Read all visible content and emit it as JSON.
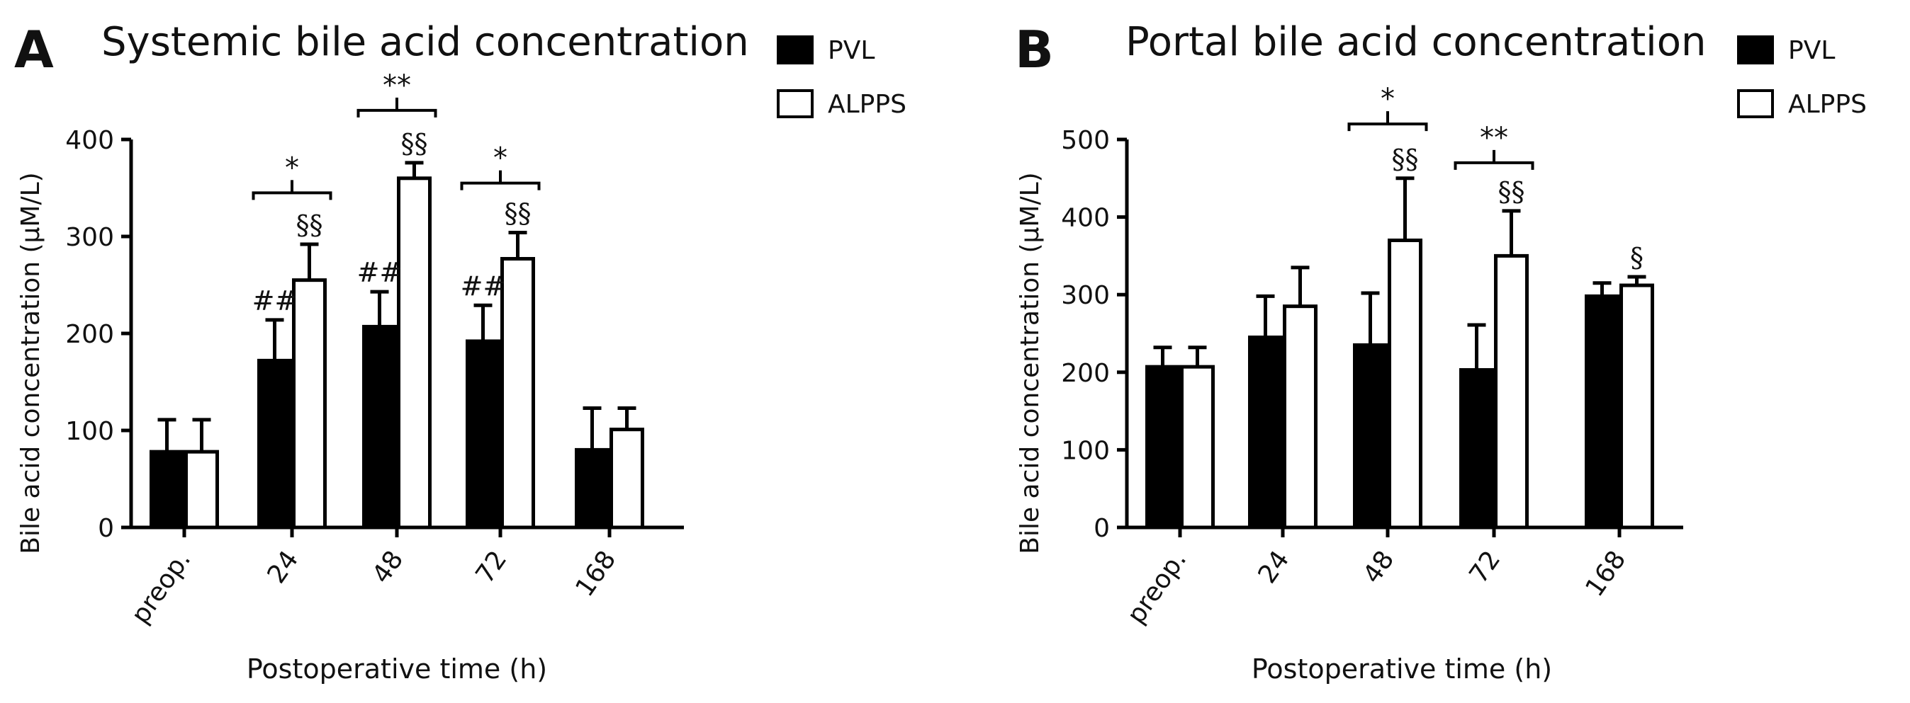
{
  "chart_data": [
    {
      "panel": "A",
      "type": "bar",
      "title": "Systemic bile acid concentration",
      "xlabel": "Postoperative time (h)",
      "ylabel": "Bile acid concentration (μM/L)",
      "ylim": [
        0,
        400
      ],
      "yticks": [
        0,
        100,
        200,
        300,
        400
      ],
      "categories": [
        "preop.",
        "24",
        "48",
        "72",
        "168"
      ],
      "series": [
        {
          "name": "PVL",
          "color": "#000000",
          "values": [
            78,
            172,
            207,
            192,
            80
          ],
          "errors": [
            33,
            42,
            36,
            37,
            43
          ]
        },
        {
          "name": "ALPPS",
          "color": "#ffffff",
          "values": [
            78,
            255,
            360,
            277,
            101
          ],
          "errors": [
            33,
            37,
            16,
            27,
            22
          ]
        }
      ],
      "annotations": [
        {
          "category": "24",
          "series": "PVL",
          "text": "##"
        },
        {
          "category": "48",
          "series": "PVL",
          "text": "##"
        },
        {
          "category": "72",
          "series": "PVL",
          "text": "##"
        },
        {
          "category": "24",
          "series": "ALPPS",
          "text": "§§"
        },
        {
          "category": "48",
          "series": "ALPPS",
          "text": "§§"
        },
        {
          "category": "72",
          "series": "ALPPS",
          "text": "§§"
        }
      ],
      "brackets": [
        {
          "category": "24",
          "text": "*",
          "level": 345
        },
        {
          "category": "48",
          "text": "**",
          "level": 430
        },
        {
          "category": "72",
          "text": "*",
          "level": 355
        }
      ],
      "legend": "top-right"
    },
    {
      "panel": "B",
      "type": "bar",
      "title": "Portal bile acid concentration",
      "xlabel": "Postoperative time (h)",
      "ylabel": "Bile acid concentration (μM/L)",
      "ylim": [
        0,
        500
      ],
      "yticks": [
        0,
        100,
        200,
        300,
        400,
        500
      ],
      "categories": [
        "preop.",
        "24",
        "48",
        "72",
        "168"
      ],
      "series": [
        {
          "name": "PVL",
          "color": "#000000",
          "values": [
            207,
            245,
            235,
            203,
            298
          ],
          "errors": [
            25,
            53,
            67,
            58,
            17
          ]
        },
        {
          "name": "ALPPS",
          "color": "#ffffff",
          "values": [
            207,
            285,
            370,
            350,
            312
          ],
          "errors": [
            25,
            50,
            80,
            58,
            11
          ]
        }
      ],
      "annotations": [
        {
          "category": "48",
          "series": "ALPPS",
          "text": "§§"
        },
        {
          "category": "72",
          "series": "ALPPS",
          "text": "§§"
        },
        {
          "category": "168",
          "series": "ALPPS",
          "text": "§"
        }
      ],
      "brackets": [
        {
          "category": "48",
          "text": "*",
          "level": 520
        },
        {
          "category": "72",
          "text": "**",
          "level": 470
        }
      ],
      "legend": "top-right"
    }
  ]
}
